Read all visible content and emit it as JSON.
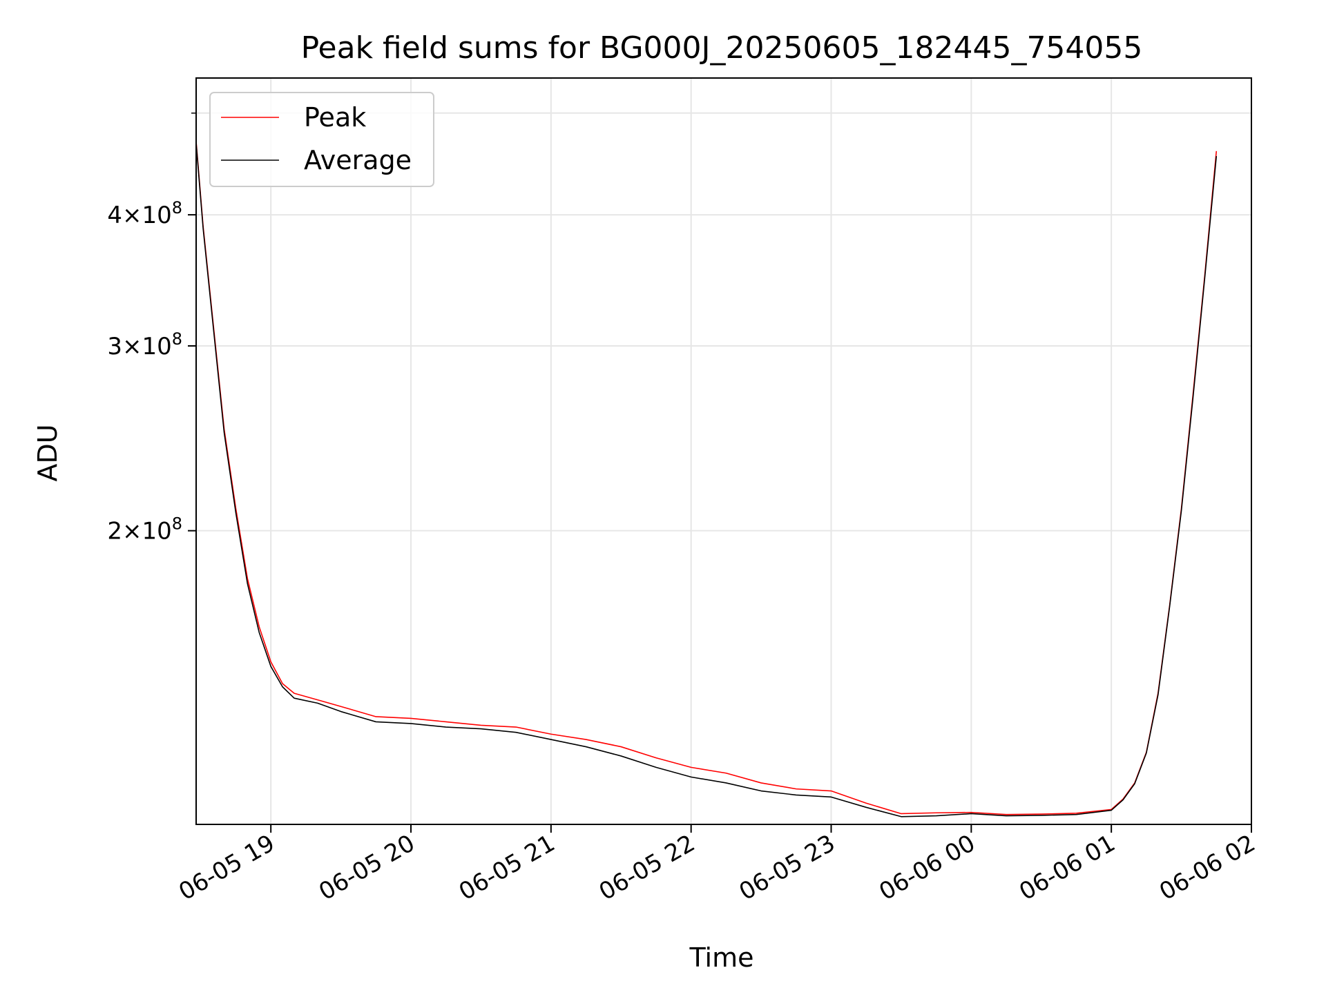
{
  "chart_data": {
    "type": "line",
    "title": "Peak field sums for BG000J_20250605_182445_754055",
    "xlabel": "Time",
    "ylabel": "ADU",
    "y_scale": "log",
    "grid": true,
    "legend_placement": "top-left",
    "x_range": [
      "2025-06-05 18:28",
      "2025-06-06 02:00"
    ],
    "ylim": [
      105000000,
      540000000
    ],
    "x_ticks": [
      {
        "value": "2025-06-05 19:00",
        "label": "06-05 19"
      },
      {
        "value": "2025-06-05 20:00",
        "label": "06-05 20"
      },
      {
        "value": "2025-06-05 21:00",
        "label": "06-05 21"
      },
      {
        "value": "2025-06-05 22:00",
        "label": "06-05 22"
      },
      {
        "value": "2025-06-05 23:00",
        "label": "06-05 23"
      },
      {
        "value": "2025-06-06 00:00",
        "label": "06-06 00"
      },
      {
        "value": "2025-06-06 01:00",
        "label": "06-06 01"
      },
      {
        "value": "2025-06-06 02:00",
        "label": "06-06 02"
      }
    ],
    "y_ticks": [
      {
        "value": 200000000,
        "mantissa": "2",
        "base": "10",
        "exp": "8"
      },
      {
        "value": 300000000,
        "mantissa": "3",
        "base": "10",
        "exp": "8"
      },
      {
        "value": 400000000,
        "mantissa": "4",
        "base": "10",
        "exp": "8"
      }
    ],
    "y_minor_ticks": [
      500000000
    ],
    "series": [
      {
        "name": "Peak",
        "color": "#ff0000",
        "x": [
          "2025-06-05 18:28",
          "2025-06-05 18:31",
          "2025-06-05 18:35",
          "2025-06-05 18:40",
          "2025-06-05 18:45",
          "2025-06-05 18:50",
          "2025-06-05 18:55",
          "2025-06-05 19:00",
          "2025-06-05 19:05",
          "2025-06-05 19:10",
          "2025-06-05 19:20",
          "2025-06-05 19:30",
          "2025-06-05 19:45",
          "2025-06-05 20:00",
          "2025-06-05 20:15",
          "2025-06-05 20:30",
          "2025-06-05 20:45",
          "2025-06-05 21:00",
          "2025-06-05 21:15",
          "2025-06-05 21:30",
          "2025-06-05 21:45",
          "2025-06-05 22:00",
          "2025-06-05 22:15",
          "2025-06-05 22:30",
          "2025-06-05 22:45",
          "2025-06-05 23:00",
          "2025-06-05 23:15",
          "2025-06-05 23:30",
          "2025-06-05 23:45",
          "2025-06-06 00:00",
          "2025-06-06 00:15",
          "2025-06-06 00:30",
          "2025-06-06 00:45",
          "2025-06-06 01:00",
          "2025-06-06 01:05",
          "2025-06-06 01:10",
          "2025-06-06 01:15",
          "2025-06-06 01:20",
          "2025-06-06 01:25",
          "2025-06-06 01:30",
          "2025-06-06 01:35",
          "2025-06-06 01:40",
          "2025-06-06 01:45"
        ],
        "y": [
          470000000,
          390000000,
          320000000,
          250000000,
          210000000,
          180000000,
          162000000,
          150000000,
          143000000,
          140000000,
          138000000,
          136000000,
          133000000,
          132500000,
          131500000,
          130500000,
          130000000,
          128000000,
          126500000,
          124500000,
          121500000,
          119000000,
          117500000,
          115000000,
          113500000,
          113000000,
          110000000,
          107500000,
          107700000,
          107800000,
          107300000,
          107400000,
          107600000,
          108500000,
          111000000,
          115000000,
          123000000,
          140000000,
          170000000,
          210000000,
          270000000,
          350000000,
          460000000
        ]
      },
      {
        "name": "Average",
        "color": "#000000",
        "x": [
          "2025-06-05 18:28",
          "2025-06-05 18:31",
          "2025-06-05 18:35",
          "2025-06-05 18:40",
          "2025-06-05 18:45",
          "2025-06-05 18:50",
          "2025-06-05 18:55",
          "2025-06-05 19:00",
          "2025-06-05 19:05",
          "2025-06-05 19:10",
          "2025-06-05 19:20",
          "2025-06-05 19:30",
          "2025-06-05 19:45",
          "2025-06-05 20:00",
          "2025-06-05 20:15",
          "2025-06-05 20:30",
          "2025-06-05 20:45",
          "2025-06-05 21:00",
          "2025-06-05 21:15",
          "2025-06-05 21:30",
          "2025-06-05 21:45",
          "2025-06-05 22:00",
          "2025-06-05 22:15",
          "2025-06-05 22:30",
          "2025-06-05 22:45",
          "2025-06-05 23:00",
          "2025-06-05 23:15",
          "2025-06-05 23:30",
          "2025-06-05 23:45",
          "2025-06-06 00:00",
          "2025-06-06 00:15",
          "2025-06-06 00:30",
          "2025-06-06 00:45",
          "2025-06-06 01:00",
          "2025-06-06 01:05",
          "2025-06-06 01:10",
          "2025-06-06 01:15",
          "2025-06-06 01:20",
          "2025-06-06 01:25",
          "2025-06-06 01:30",
          "2025-06-06 01:35",
          "2025-06-06 01:40",
          "2025-06-06 01:45"
        ],
        "y": [
          468000000,
          388000000,
          318000000,
          248000000,
          208000000,
          178000000,
          160000000,
          148500000,
          142000000,
          138500000,
          137000000,
          134500000,
          131500000,
          131000000,
          130000000,
          129500000,
          128500000,
          126500000,
          124500000,
          122000000,
          119000000,
          116500000,
          115000000,
          113000000,
          112000000,
          111500000,
          109000000,
          106800000,
          107000000,
          107500000,
          107000000,
          107100000,
          107300000,
          108300000,
          110800000,
          114800000,
          122800000,
          139500000,
          169500000,
          209000000,
          268000000,
          348000000,
          455000000
        ]
      }
    ]
  }
}
